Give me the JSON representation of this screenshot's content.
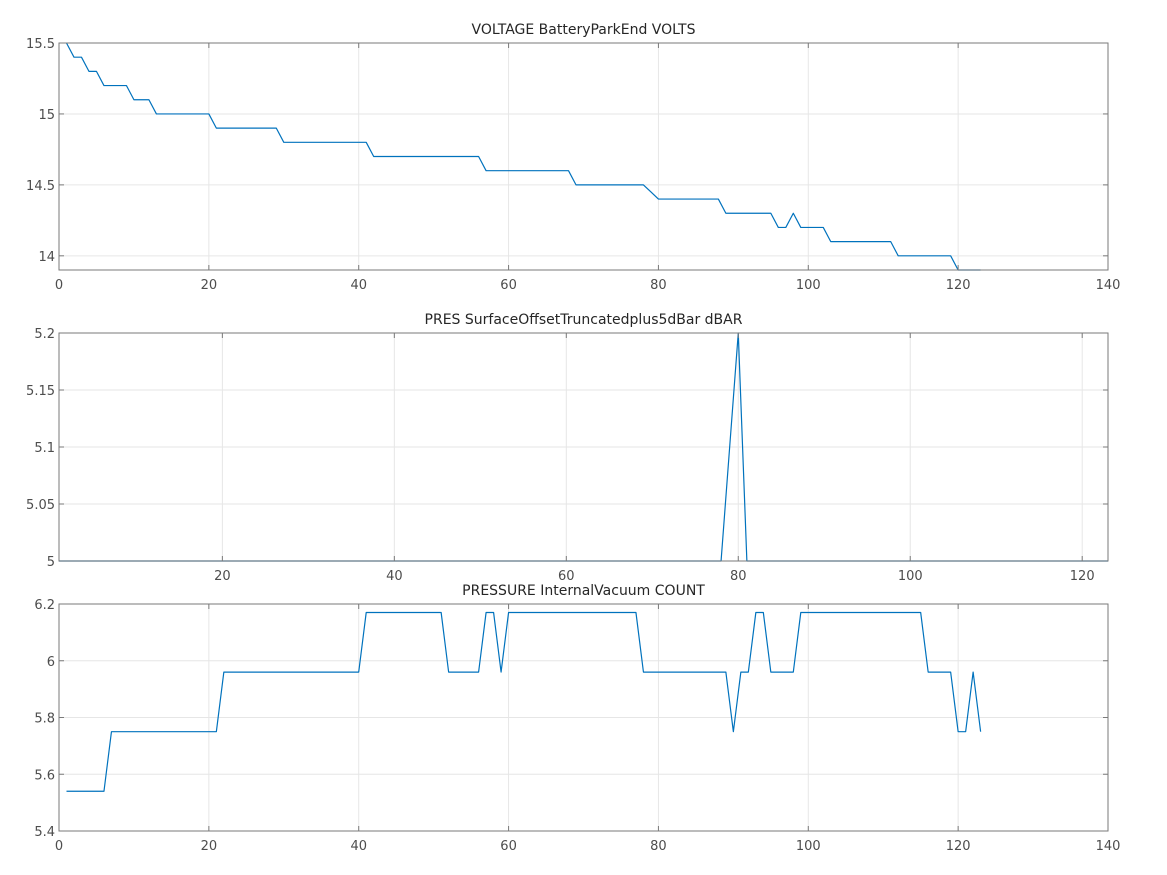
{
  "colors": {
    "series": "#0072bd",
    "grid": "#e6e6e6",
    "axis": "#7a7a7a",
    "text": "#262626"
  },
  "chart_data": [
    {
      "type": "line",
      "title": "VOLTAGE BatteryParkEnd VOLTS",
      "xlabel": "",
      "ylabel": "",
      "xlim": [
        0,
        140
      ],
      "ylim": [
        13.9,
        15.5
      ],
      "xticks": [
        0,
        20,
        40,
        60,
        80,
        100,
        120,
        140
      ],
      "xtick_labels": [
        "0",
        "20",
        "40",
        "60",
        "80",
        "100",
        "120",
        "140"
      ],
      "yticks": [
        14,
        14.5,
        15,
        15.5
      ],
      "ytick_labels": [
        "14",
        "14.5",
        "15",
        "15.5"
      ],
      "grid": true,
      "series": [
        {
          "x": [
            1,
            2,
            3,
            4,
            5,
            6,
            7,
            8,
            9,
            10,
            11,
            12,
            13,
            14,
            15,
            16,
            17,
            18,
            19,
            20,
            21,
            22,
            23,
            24,
            25,
            26,
            27,
            28,
            29,
            30,
            31,
            32,
            33,
            34,
            35,
            36,
            37,
            38,
            39,
            40,
            41,
            42,
            43,
            44,
            45,
            46,
            47,
            48,
            49,
            50,
            51,
            52,
            53,
            54,
            55,
            56,
            57,
            58,
            59,
            60,
            61,
            62,
            63,
            64,
            65,
            66,
            67,
            68,
            69,
            70,
            71,
            72,
            73,
            74,
            75,
            76,
            77,
            78,
            79,
            80,
            81,
            82,
            83,
            84,
            85,
            86,
            87,
            88,
            89,
            90,
            91,
            92,
            93,
            94,
            95,
            96,
            97,
            98,
            99,
            100,
            101,
            102,
            103,
            104,
            105,
            106,
            107,
            108,
            109,
            110,
            111,
            112,
            113,
            114,
            115,
            116,
            117,
            118,
            119,
            120,
            121,
            122,
            123
          ],
          "y": [
            15.5,
            15.4,
            15.4,
            15.3,
            15.3,
            15.2,
            15.2,
            15.2,
            15.2,
            15.1,
            15.1,
            15.1,
            15.0,
            15.0,
            15.0,
            15.0,
            15.0,
            15.0,
            15.0,
            15.0,
            14.9,
            14.9,
            14.9,
            14.9,
            14.9,
            14.9,
            14.9,
            14.9,
            14.9,
            14.8,
            14.8,
            14.8,
            14.8,
            14.8,
            14.8,
            14.8,
            14.8,
            14.8,
            14.8,
            14.8,
            14.8,
            14.7,
            14.7,
            14.7,
            14.7,
            14.7,
            14.7,
            14.7,
            14.7,
            14.7,
            14.7,
            14.7,
            14.7,
            14.7,
            14.7,
            14.7,
            14.6,
            14.6,
            14.6,
            14.6,
            14.6,
            14.6,
            14.6,
            14.6,
            14.6,
            14.6,
            14.6,
            14.6,
            14.5,
            14.5,
            14.5,
            14.5,
            14.5,
            14.5,
            14.5,
            14.5,
            14.5,
            14.5,
            14.45,
            14.4,
            14.4,
            14.4,
            14.4,
            14.4,
            14.4,
            14.4,
            14.4,
            14.4,
            14.3,
            14.3,
            14.3,
            14.3,
            14.3,
            14.3,
            14.3,
            14.2,
            14.2,
            14.3,
            14.2,
            14.2,
            14.2,
            14.2,
            14.1,
            14.1,
            14.1,
            14.1,
            14.1,
            14.1,
            14.1,
            14.1,
            14.1,
            14.0,
            14.0,
            14.0,
            14.0,
            14.0,
            14.0,
            14.0,
            14.0,
            13.9,
            13.9,
            13.9,
            13.9
          ]
        }
      ]
    },
    {
      "type": "line",
      "title": "PRES SurfaceOffsetTruncatedplus5dBar dBAR",
      "xlabel": "",
      "ylabel": "",
      "xlim": [
        1,
        123
      ],
      "ylim": [
        5,
        5.2
      ],
      "xticks": [
        20,
        40,
        60,
        80,
        100,
        120
      ],
      "xtick_labels": [
        "20",
        "40",
        "60",
        "80",
        "100",
        "120"
      ],
      "yticks": [
        5,
        5.05,
        5.1,
        5.15,
        5.2
      ],
      "ytick_labels": [
        "5",
        "5.05",
        "5.1",
        "5.15",
        "5.2"
      ],
      "grid": true,
      "series": [
        {
          "x": [
            1,
            78,
            79,
            80,
            81,
            82,
            123
          ],
          "y": [
            5,
            5,
            5.1,
            5.2,
            5,
            5,
            5
          ]
        }
      ]
    },
    {
      "type": "line",
      "title": "PRESSURE InternalVacuum COUNT",
      "xlabel": "",
      "ylabel": "",
      "xlim": [
        0,
        140
      ],
      "ylim": [
        5.4,
        6.2
      ],
      "xticks": [
        0,
        20,
        40,
        60,
        80,
        100,
        120,
        140
      ],
      "xtick_labels": [
        "0",
        "20",
        "40",
        "60",
        "80",
        "100",
        "120",
        "140"
      ],
      "yticks": [
        5.4,
        5.6,
        5.8,
        6,
        6.2
      ],
      "ytick_labels": [
        "5.4",
        "5.6",
        "5.8",
        "6",
        "6.2"
      ],
      "grid": true,
      "series": [
        {
          "x": [
            1,
            6,
            7,
            21,
            22,
            40,
            41,
            51,
            52,
            56,
            57,
            58,
            59,
            60,
            77,
            78,
            89,
            90,
            91,
            92,
            93,
            94,
            95,
            98,
            99,
            115,
            116,
            119,
            120,
            121,
            122,
            123
          ],
          "y": [
            5.54,
            5.54,
            5.75,
            5.75,
            5.96,
            5.96,
            6.17,
            6.17,
            5.96,
            5.96,
            6.17,
            6.17,
            5.96,
            6.17,
            6.17,
            5.96,
            5.96,
            5.75,
            5.96,
            5.96,
            6.17,
            6.17,
            5.96,
            5.96,
            6.17,
            6.17,
            5.96,
            5.96,
            5.75,
            5.75,
            5.96,
            5.75
          ]
        }
      ]
    }
  ]
}
